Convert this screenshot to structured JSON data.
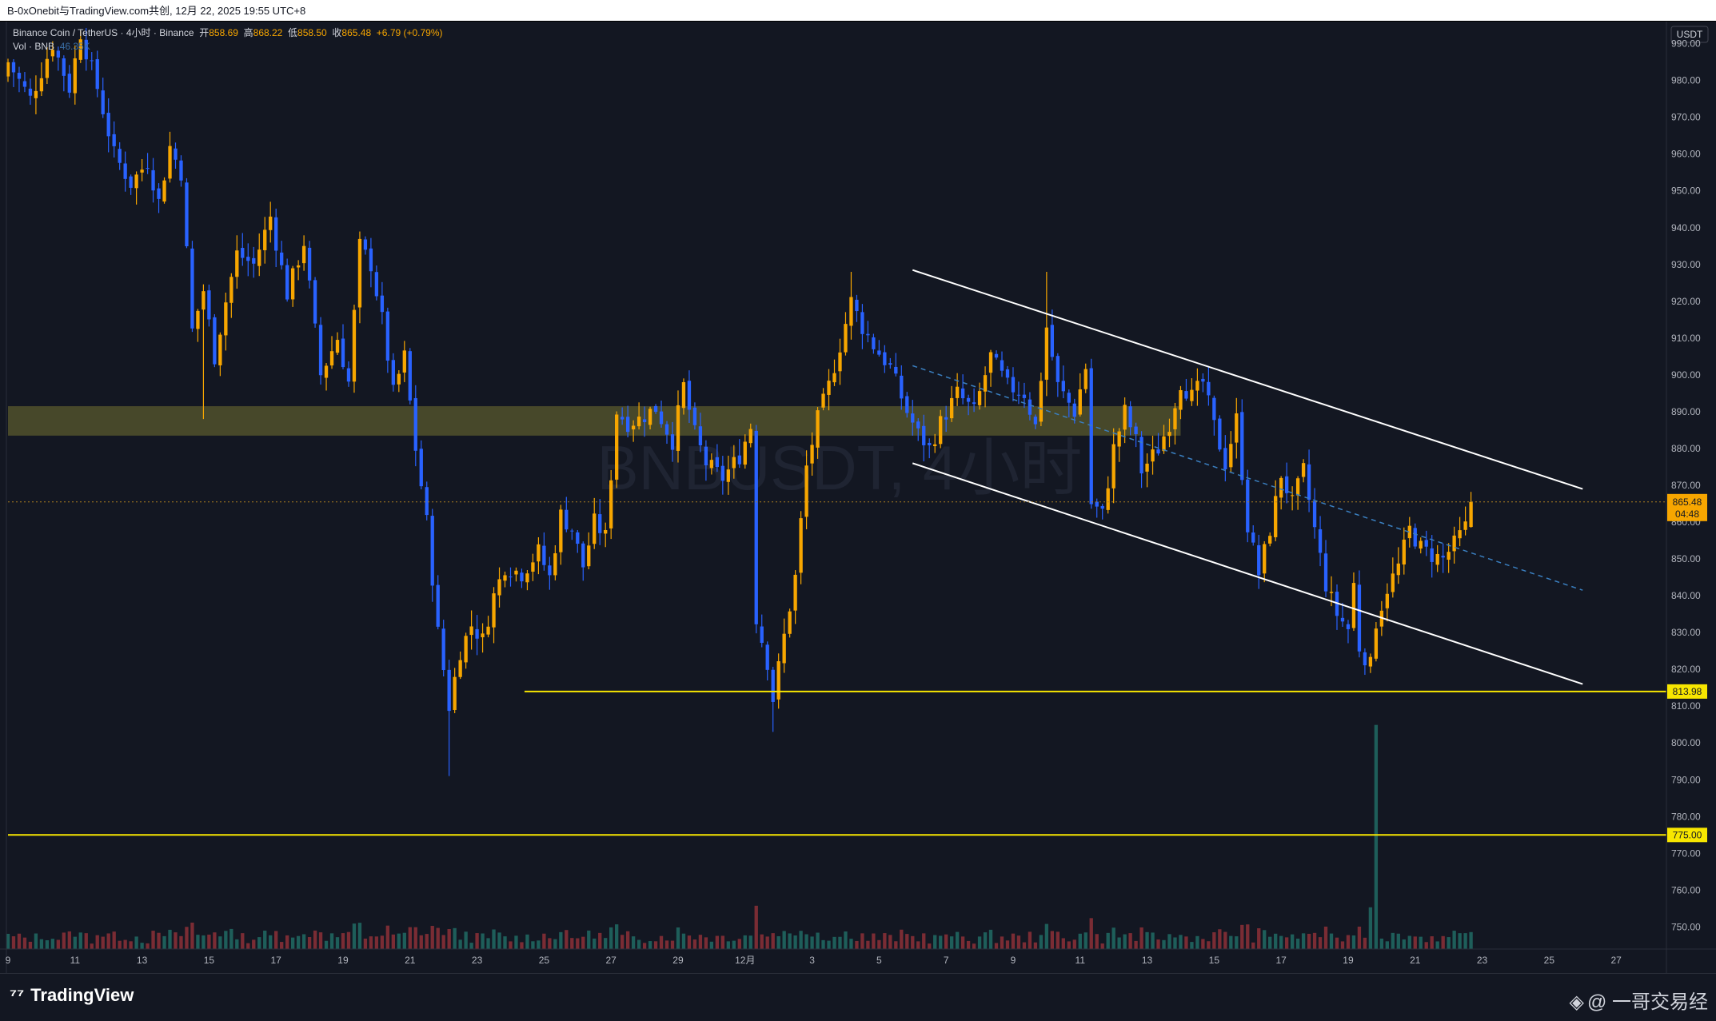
{
  "header": {
    "share_text": "B-0xOnebit与TradingView.com共创, 12月 22, 2025 19:55 UTC+8"
  },
  "legend": {
    "symbol": "Binance Coin / TetherUS · 4小时 · Binance",
    "open_label": "开",
    "open": "858.69",
    "high_label": "高",
    "high": "868.22",
    "low_label": "低",
    "low": "858.50",
    "close_label": "收",
    "close": "865.48",
    "change": "+6.79 (+0.79%)",
    "vol_label": "Vol · BNB",
    "vol_value": "46.35K"
  },
  "watermark": "BNBUSDT, 4小时",
  "footer": {
    "brand": "TradingView",
    "author": "@ 一哥交易经"
  },
  "colors": {
    "background": "#131722",
    "bull": "#f7a600",
    "bear": "#2962ff",
    "level_line": "#f7e600",
    "zone": "#5a5a2e",
    "channel": "#ffffff",
    "mid_channel": "#3a7fc0",
    "price_tag": "#f7a600"
  },
  "chart_data": {
    "type": "candlestick",
    "symbol": "BNBUSDT",
    "timeframe": "4小时",
    "price_unit": "USDT",
    "ylim": [
      744,
      996
    ],
    "y_ticks": [
      990,
      980,
      970,
      960,
      950,
      940,
      930,
      920,
      910,
      900,
      890,
      880,
      870,
      860,
      850,
      840,
      830,
      820,
      810,
      800,
      790,
      780,
      770,
      760,
      750
    ],
    "y_tick_labels": [
      "990.00",
      "980.00",
      "970.00",
      "960.00",
      "950.00",
      "940.00",
      "930.00",
      "920.00",
      "910.00",
      "900.00",
      "890.00",
      "880.00",
      "870.00",
      "860.00",
      "850.00",
      "840.00",
      "830.00",
      "820.00",
      "810.00",
      "800.00",
      "790.00",
      "780.00",
      "770.00",
      "760.00",
      "750.00"
    ],
    "x_ticks": [
      {
        "date": "2025-11-09",
        "label": "9"
      },
      {
        "date": "2025-11-11",
        "label": "11"
      },
      {
        "date": "2025-11-13",
        "label": "13"
      },
      {
        "date": "2025-11-15",
        "label": "15"
      },
      {
        "date": "2025-11-17",
        "label": "17"
      },
      {
        "date": "2025-11-19",
        "label": "19"
      },
      {
        "date": "2025-11-21",
        "label": "21"
      },
      {
        "date": "2025-11-23",
        "label": "23"
      },
      {
        "date": "2025-11-25",
        "label": "25"
      },
      {
        "date": "2025-11-27",
        "label": "27"
      },
      {
        "date": "2025-11-29",
        "label": "29"
      },
      {
        "date": "2025-12-01",
        "label": "12月"
      },
      {
        "date": "2025-12-03",
        "label": "3"
      },
      {
        "date": "2025-12-05",
        "label": "5"
      },
      {
        "date": "2025-12-07",
        "label": "7"
      },
      {
        "date": "2025-12-09",
        "label": "9"
      },
      {
        "date": "2025-12-11",
        "label": "11"
      },
      {
        "date": "2025-12-13",
        "label": "13"
      },
      {
        "date": "2025-12-15",
        "label": "15"
      },
      {
        "date": "2025-12-17",
        "label": "17"
      },
      {
        "date": "2025-12-19",
        "label": "19"
      },
      {
        "date": "2025-12-21",
        "label": "21"
      },
      {
        "date": "2025-12-23",
        "label": "23"
      },
      {
        "date": "2025-12-25",
        "label": "25"
      },
      {
        "date": "2025-12-27",
        "label": "27"
      }
    ],
    "xlim": [
      "2025-11-09",
      "2025-12-28 12:00"
    ],
    "last_price": {
      "value": 865.48,
      "label": "865.48",
      "countdown": "04:48"
    },
    "levels": [
      {
        "price": 813.98,
        "label": "813.98",
        "from": "2025-11-24 10:00"
      },
      {
        "price": 775.0,
        "label": "775.00",
        "from": "2025-11-09"
      }
    ],
    "zone": {
      "low": 883.5,
      "high": 891.5,
      "from": "2025-11-09",
      "to": "2025-12-14"
    },
    "channel": {
      "upper": [
        [
          "2025-12-06",
          928.5
        ],
        [
          "2025-12-26",
          869.0
        ]
      ],
      "lower": [
        [
          "2025-12-06",
          876.0
        ],
        [
          "2025-12-26",
          816.0
        ]
      ],
      "mid": [
        [
          "2025-12-06",
          902.5
        ],
        [
          "2025-12-26",
          841.5
        ]
      ]
    },
    "volume_unit": "BNB",
    "volume_peak": {
      "date": "2025-12-19 20:00",
      "value": 300
    }
  }
}
